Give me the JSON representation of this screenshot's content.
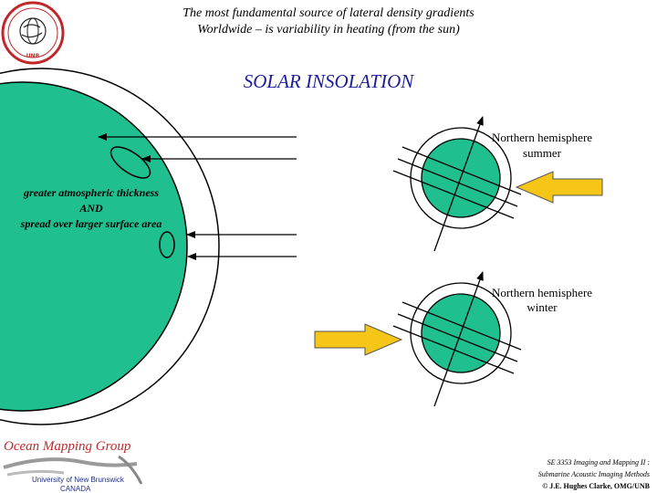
{
  "header": {
    "line1": "The most fundamental source of lateral density gradients",
    "line2": "Worldwide – is variability in heating (from the sun)"
  },
  "title": "SOLAR INSOLATION",
  "earth_label": {
    "line1": "greater atmospheric thickness",
    "line2": "AND",
    "line3": "spread over larger surface area"
  },
  "summer_label": {
    "line1": "Northern hemisphere",
    "line2": "summer"
  },
  "winter_label": {
    "line1": "Northern hemisphere",
    "line2": "winter"
  },
  "footer": {
    "group_name": "Ocean Mapping Group",
    "university": "University of New Brunswick",
    "country": "CANADA",
    "course_line1": "SE 3353 Imaging and Mapping II :",
    "course_line2": "Submarine Acoustic Imaging Methods",
    "copyright": "© J.E. Hughes Clarke, OMG/UNB"
  },
  "logo": {
    "text": "GEODESY AND GEOMATICS ENGINEERING UNB",
    "icon": "globe-seal-icon"
  },
  "colors": {
    "earth": "#1fbf8f",
    "sun_arrow": "#f5c518",
    "title": "#1c1c9c",
    "omg_red": "#c0282a"
  }
}
